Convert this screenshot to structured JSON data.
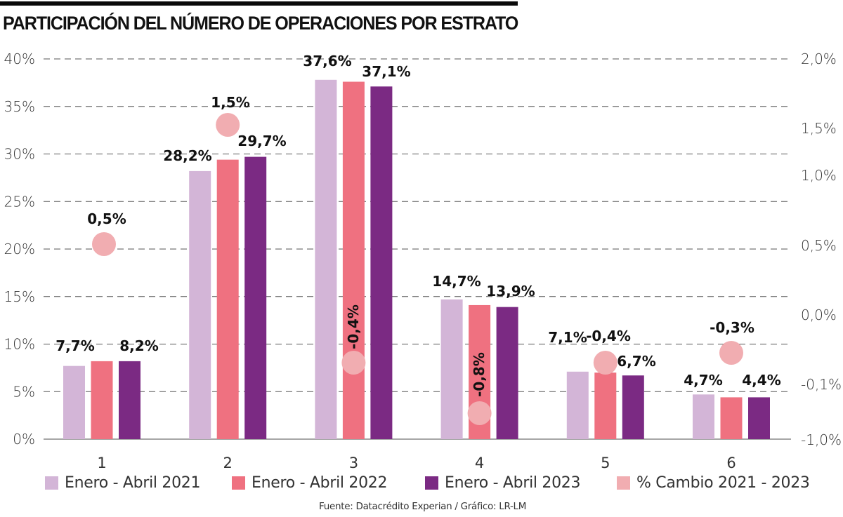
{
  "title": "PARTICIPACIÓN DEL NÚMERO DE OPERACIONES POR ESTRATO",
  "source": "Fuente: Datacrédito Experian / Gráfico: LR-LM",
  "colors": {
    "series_2021": "#D3B5D7",
    "series_2022": "#EF7180",
    "series_2023": "#7B2A83",
    "change": "#F1ADB1",
    "grid": "#555555",
    "baseline": "#888888"
  },
  "legend": [
    {
      "label": "Enero - Abril 2021",
      "color": "#D3B5D7"
    },
    {
      "label": "Enero - Abril 2022",
      "color": "#EF7180"
    },
    {
      "label": "Enero - Abril 2023",
      "color": "#7B2A83"
    },
    {
      "label": "% Cambio 2021 - 2023",
      "color": "#F1ADB1"
    }
  ],
  "chart_data": {
    "type": "bar",
    "title": "PARTICIPACIÓN DEL NÚMERO DE OPERACIONES POR ESTRATO",
    "xlabel": "",
    "ylabel": "",
    "categories": [
      "1",
      "2",
      "3",
      "4",
      "5",
      "6"
    ],
    "ylim": [
      0,
      40
    ],
    "yticks": [
      0,
      5,
      10,
      15,
      20,
      25,
      30,
      35,
      40
    ],
    "ytick_labels": [
      "0%",
      "5%",
      "10%",
      "15%",
      "20%",
      "25%",
      "30%",
      "35%",
      "40%"
    ],
    "y2_tick_labels": [
      "2,0%",
      "1,5%",
      "1,0%",
      "0,5%",
      "0,0%",
      "-0,1%",
      "-1,0%"
    ],
    "grid": true,
    "legend_position": "bottom",
    "series": [
      {
        "name": "Enero - Abril 2021",
        "type": "bar",
        "values": [
          7.7,
          28.2,
          37.8,
          14.7,
          7.1,
          4.7
        ],
        "labels": [
          "7,7%",
          "28,2%",
          "",
          "14,7%",
          "7,1%",
          "4,7%"
        ]
      },
      {
        "name": "Enero - Abril 2022",
        "type": "bar",
        "values": [
          8.2,
          29.4,
          37.6,
          14.1,
          7.0,
          4.4
        ],
        "labels": [
          "",
          "",
          "37,6%",
          "",
          "",
          ""
        ]
      },
      {
        "name": "Enero - Abril 2023",
        "type": "bar",
        "values": [
          8.2,
          29.7,
          37.1,
          13.9,
          6.7,
          4.4
        ],
        "labels": [
          "8,2%",
          "29,7%",
          "37,1%",
          "13,9%",
          "6,7%",
          "4,4%"
        ]
      },
      {
        "name": "% Cambio 2021 - 2023",
        "type": "scatter",
        "axis": "right",
        "values": [
          0.5,
          1.5,
          -0.4,
          -0.8,
          -0.4,
          -0.3
        ],
        "labels": [
          "0,5%",
          "1,5%",
          "-0,4%",
          "-0,8%",
          "-0,4%",
          "-0,3%"
        ]
      }
    ]
  }
}
